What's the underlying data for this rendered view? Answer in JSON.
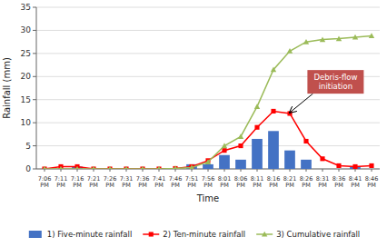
{
  "chart_data": {
    "type": "bar",
    "categories": [
      "7:06\nPM",
      "7:11\nPM",
      "7:16\nPM",
      "7:21\nPM",
      "7:26\nPM",
      "7:31\nPM",
      "7:36\nPM",
      "7:41\nPM",
      "7:46\nPM",
      "7:51\nPM",
      "7:56\nPM",
      "8:01\nPM",
      "8:06\nPM",
      "8:11\nPM",
      "8:16\nPM",
      "8:21\nPM",
      "8:26\nPM",
      "8:31\nPM",
      "8:36\nPM",
      "8:41\nPM",
      "8:46\nPM"
    ],
    "series": [
      {
        "name": "1) Five-minute rainfall",
        "type": "bar",
        "color": "#4472C4",
        "values": [
          0.0,
          0.0,
          0.5,
          0.0,
          0.0,
          0.0,
          0.0,
          0.0,
          0.0,
          1.0,
          1.0,
          3.0,
          2.0,
          6.5,
          8.2,
          4.0,
          2.0,
          0.0,
          0.0,
          0.5,
          0.0
        ]
      },
      {
        "name": "2) Ten-minute rainfall",
        "type": "line",
        "color": "#FF0000",
        "marker": "square",
        "line_style": "solid",
        "values": [
          0.0,
          0.5,
          0.5,
          0.0,
          0.0,
          0.0,
          0.0,
          0.0,
          0.1,
          0.5,
          1.8,
          4.0,
          5.0,
          9.0,
          12.5,
          12.0,
          6.0,
          2.2,
          0.7,
          0.5,
          0.7
        ]
      },
      {
        "name": "3) Cumulative rainfall",
        "type": "line",
        "color": "#9BBB59",
        "marker": "triangle",
        "line_style": "solid",
        "values": [
          0.0,
          0.0,
          0.0,
          0.0,
          0.0,
          0.0,
          0.0,
          0.0,
          0.1,
          0.3,
          1.5,
          5.0,
          7.0,
          13.5,
          21.5,
          25.5,
          27.5,
          28.0,
          28.2,
          28.5,
          28.8
        ]
      }
    ],
    "x_label": "Time",
    "y_label": "Rainfall (mm)",
    "ylim": [
      0,
      35
    ],
    "yticks": [
      0,
      5,
      10,
      15,
      20,
      25,
      30,
      35
    ],
    "grid": true,
    "legend": "bottom",
    "annotations": [
      {
        "text": "Debris-flow\ninitiation",
        "x": "8:21\nPM",
        "y": 12.2,
        "color": "#C0504D"
      }
    ]
  }
}
